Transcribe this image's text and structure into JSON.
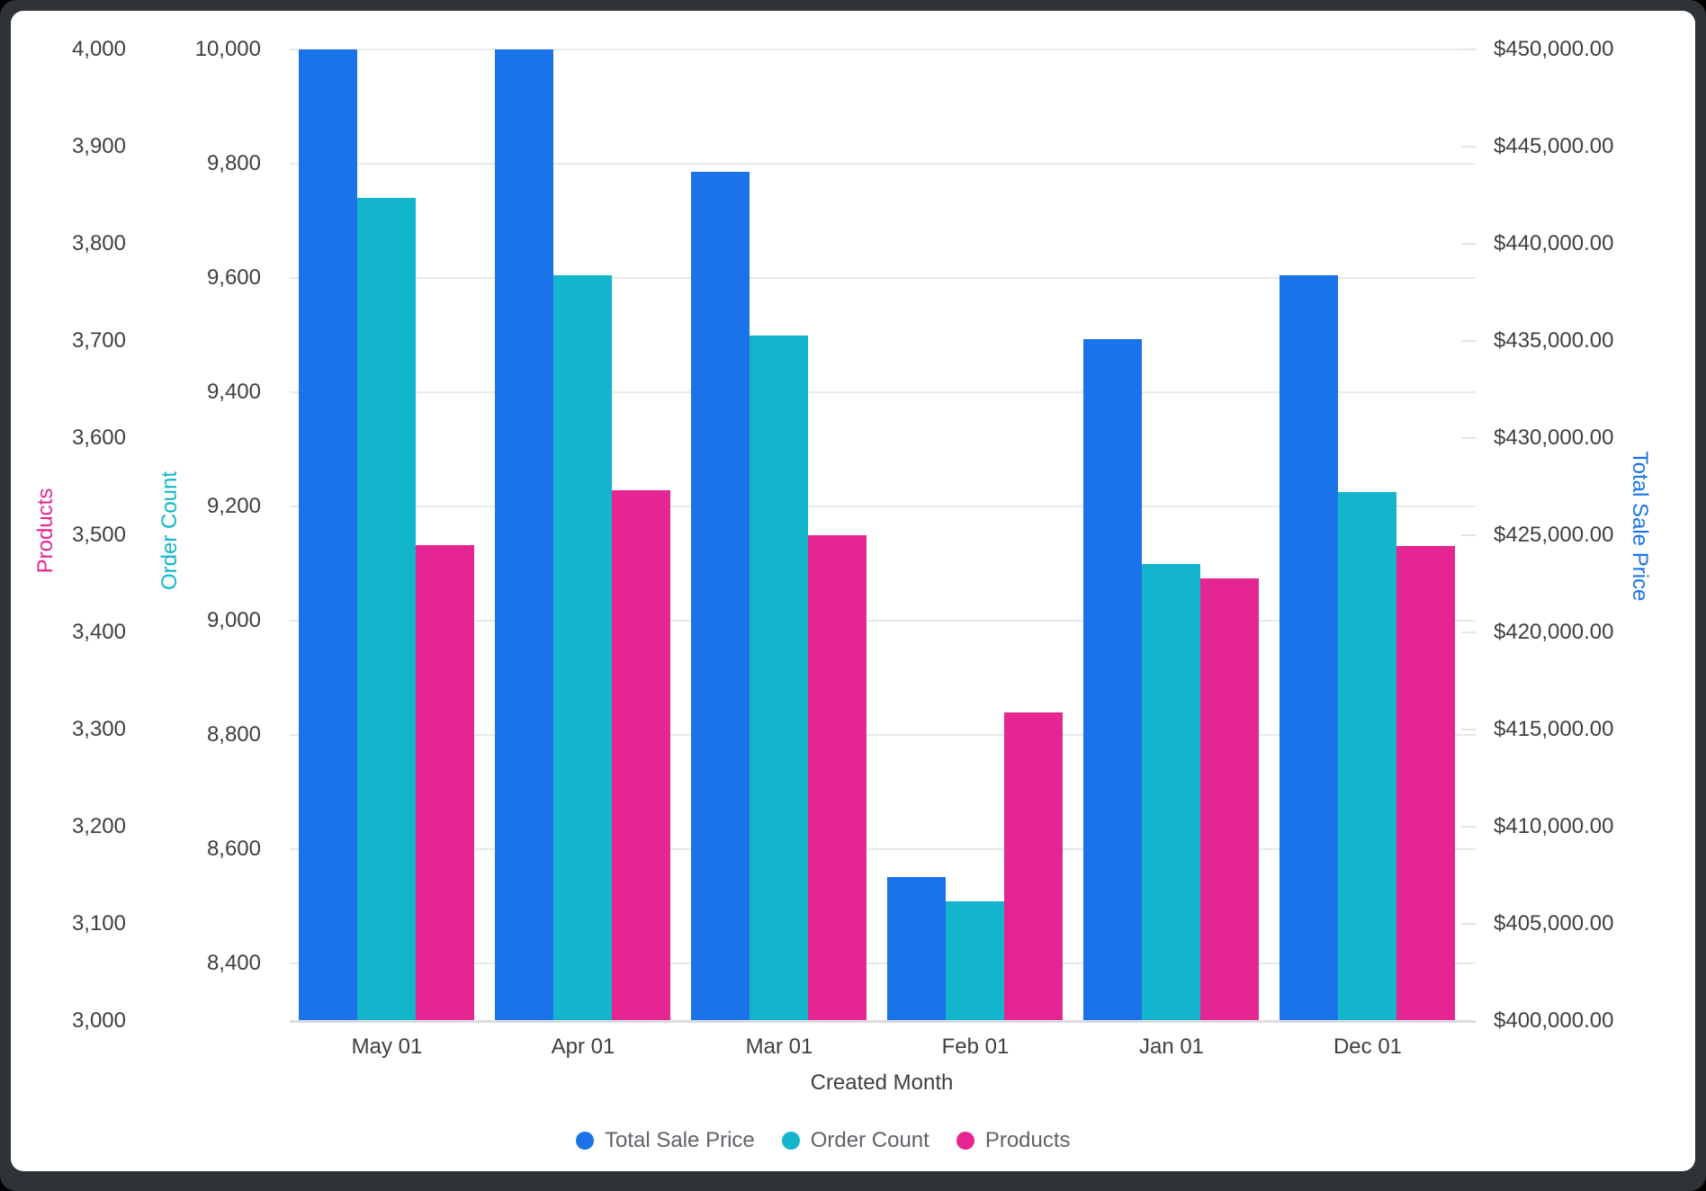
{
  "chart_data": {
    "type": "bar",
    "xlabel": "Created Month",
    "categories": [
      "May 01",
      "Apr 01",
      "Mar 01",
      "Feb 01",
      "Jan 01",
      "Dec 01"
    ],
    "series": [
      {
        "name": "Total Sale Price",
        "axis": "price",
        "color": "#1A73E8",
        "values": [
          450000,
          450000,
          443700,
          407400,
          435100,
          438400
        ]
      },
      {
        "name": "Order Count",
        "axis": "orders",
        "color": "#12B5CB",
        "values": [
          9740,
          9605,
          9500,
          8510,
          9100,
          9225
        ]
      },
      {
        "name": "Products",
        "axis": "products",
        "color": "#E52592",
        "values": [
          3490,
          3546,
          3500,
          3318,
          3456,
          3489
        ]
      }
    ],
    "axes": {
      "products": {
        "title": "Products",
        "color": "#E52592",
        "plot_min": 3000,
        "plot_max": 4000,
        "ticks": [
          [
            4000,
            "4,000"
          ],
          [
            3900,
            "3,900"
          ],
          [
            3800,
            "3,800"
          ],
          [
            3700,
            "3,700"
          ],
          [
            3600,
            "3,600"
          ],
          [
            3500,
            "3,500"
          ],
          [
            3400,
            "3,400"
          ],
          [
            3300,
            "3,300"
          ],
          [
            3200,
            "3,200"
          ],
          [
            3100,
            "3,100"
          ],
          [
            3000,
            "3,000"
          ]
        ]
      },
      "orders": {
        "title": "Order Count",
        "color": "#12B5CB",
        "plot_min": 8300,
        "plot_max": 10000,
        "ticks": [
          [
            10000,
            "10,000"
          ],
          [
            9800,
            "9,800"
          ],
          [
            9600,
            "9,600"
          ],
          [
            9400,
            "9,400"
          ],
          [
            9200,
            "9,200"
          ],
          [
            9000,
            "9,000"
          ],
          [
            8800,
            "8,800"
          ],
          [
            8600,
            "8,600"
          ],
          [
            8400,
            "8,400"
          ]
        ]
      },
      "price": {
        "title": "Total Sale Price",
        "color": "#1A73E8",
        "plot_min": 400000,
        "plot_max": 450000,
        "ticks": [
          [
            450000,
            "$450,000.00"
          ],
          [
            445000,
            "$445,000.00"
          ],
          [
            440000,
            "$440,000.00"
          ],
          [
            435000,
            "$435,000.00"
          ],
          [
            430000,
            "$430,000.00"
          ],
          [
            425000,
            "$425,000.00"
          ],
          [
            420000,
            "$420,000.00"
          ],
          [
            415000,
            "$415,000.00"
          ],
          [
            410000,
            "$410,000.00"
          ],
          [
            405000,
            "$405,000.00"
          ],
          [
            400000,
            "$400,000.00"
          ]
        ]
      }
    },
    "legend": [
      "Total Sale Price",
      "Order Count",
      "Products"
    ],
    "legend_position": "bottom",
    "grid": "horizontal"
  },
  "colors": {
    "frame": "#2E3338",
    "card": "#FFFFFF",
    "gridline": "#E9E9E9",
    "axis_line": "#DADCE0",
    "tick_text": "#3C4043",
    "legend_text": "#5F6368"
  }
}
